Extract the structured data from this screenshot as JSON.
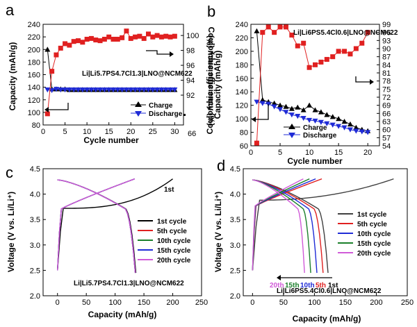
{
  "chart_data": [
    {
      "panel": "a",
      "type": "line",
      "annotation": "Li|Li5.7PS4.7Cl1.3|LNO@NCM622",
      "xlabel": "Cycle number",
      "ylabel": "Capacity (mAh/g)",
      "y2label": "Coulombic efficiency (%)",
      "xlim": [
        0,
        32
      ],
      "xticks": [
        0,
        5,
        10,
        15,
        20,
        25,
        30
      ],
      "ylim": [
        80,
        240
      ],
      "yticks": [
        80,
        100,
        120,
        140,
        160,
        180,
        200,
        220,
        240
      ],
      "y2lim": [
        88,
        101.5
      ],
      "y2ticks": [
        92,
        94,
        96,
        98,
        100
      ],
      "extra_y2_tick_label": "66",
      "series": [
        {
          "name": "Charge",
          "axis": "left",
          "marker": "triangle-up",
          "color": "#000000",
          "x": [
            1,
            2,
            3,
            4,
            5,
            6,
            7,
            8,
            9,
            10,
            11,
            12,
            13,
            14,
            15,
            16,
            17,
            18,
            19,
            20,
            21,
            22,
            23,
            24,
            25,
            26,
            27,
            28,
            29,
            30
          ],
          "values": [
            200,
            137,
            137,
            137,
            137,
            136,
            136,
            136,
            136,
            136,
            136,
            136,
            136,
            136,
            136,
            136,
            136,
            136,
            136,
            136,
            136,
            136,
            136,
            136,
            136,
            136,
            136,
            136,
            136,
            136
          ]
        },
        {
          "name": "Discharge",
          "axis": "left",
          "marker": "triangle-down",
          "color": "#1f2bd6",
          "x": [
            1,
            2,
            3,
            4,
            5,
            6,
            7,
            8,
            9,
            10,
            11,
            12,
            13,
            14,
            15,
            16,
            17,
            18,
            19,
            20,
            21,
            22,
            23,
            24,
            25,
            26,
            27,
            28,
            29,
            30
          ],
          "values": [
            136,
            135,
            137,
            136,
            136,
            136,
            136,
            136,
            136,
            136,
            136,
            136,
            136,
            136,
            136,
            136,
            136,
            136,
            136,
            136,
            136,
            136,
            136,
            136,
            136,
            136,
            136,
            136,
            136,
            136
          ]
        },
        {
          "name": "Coulombic efficiency",
          "axis": "right",
          "marker": "square",
          "color": "#e02020",
          "x": [
            1,
            2,
            3,
            4,
            5,
            6,
            7,
            8,
            9,
            10,
            11,
            12,
            13,
            14,
            15,
            16,
            17,
            18,
            19,
            20,
            21,
            22,
            23,
            24,
            25,
            26,
            27,
            28,
            29,
            30
          ],
          "values": [
            89.5,
            95.2,
            97.4,
            98.3,
            98.9,
            98.7,
            99.2,
            99.3,
            99.1,
            99.5,
            99.6,
            99.4,
            99.3,
            99.5,
            99.8,
            99.5,
            99.5,
            99.7,
            100.6,
            99.6,
            99.8,
            99.9,
            99.6,
            100.2,
            99.8,
            100.0,
            99.8,
            99.9,
            99.8,
            99.9
          ]
        }
      ]
    },
    {
      "panel": "b",
      "type": "line",
      "annotation": "Li|Li6PS5.4Cl0.6|LNO@NCM622",
      "xlabel": "Cycle number",
      "ylabel": "Capacity (mAh/g)",
      "y2label": "Coulombic efficiency (%)",
      "xlim": [
        0,
        22
      ],
      "xticks": [
        0,
        5,
        10,
        15,
        20
      ],
      "ylim": [
        60,
        240
      ],
      "yticks": [
        60,
        80,
        100,
        120,
        140,
        160,
        180,
        200,
        220,
        240
      ],
      "y2lim": [
        54,
        99
      ],
      "y2ticks": [
        54,
        57,
        60,
        63,
        66,
        69,
        72,
        75,
        78,
        81,
        84,
        87,
        90,
        93,
        96,
        99
      ],
      "series": [
        {
          "name": "Charge",
          "axis": "left",
          "marker": "triangle-up",
          "color": "#000000",
          "x": [
            1,
            2,
            3,
            4,
            5,
            6,
            7,
            8,
            9,
            10,
            11,
            12,
            13,
            14,
            15,
            16,
            17,
            18,
            19,
            20
          ],
          "values": [
            230,
            128,
            125,
            123,
            120,
            118,
            115,
            117,
            113,
            120,
            113,
            110,
            106,
            103,
            100,
            96,
            92,
            87,
            84,
            82
          ]
        },
        {
          "name": "Discharge",
          "axis": "left",
          "marker": "triangle-down",
          "color": "#1f2bd6",
          "x": [
            1,
            2,
            3,
            4,
            5,
            6,
            7,
            8,
            9,
            10,
            11,
            12,
            13,
            14,
            15,
            16,
            17,
            18,
            19,
            20
          ],
          "values": [
            125,
            123,
            122,
            118,
            114,
            110,
            106,
            104,
            101,
            98,
            97,
            95,
            93,
            91,
            89,
            87,
            84,
            82,
            81,
            80
          ]
        },
        {
          "name": "Coulombic efficiency",
          "axis": "right",
          "marker": "square",
          "color": "#e02020",
          "x": [
            1,
            2,
            3,
            4,
            5,
            6,
            7,
            8,
            9,
            10,
            11,
            12,
            13,
            14,
            15,
            16,
            17,
            18,
            19,
            20
          ],
          "values": [
            55,
            96,
            98,
            96,
            98,
            98,
            95,
            91,
            92,
            83,
            84,
            85,
            86,
            87,
            89,
            89,
            88,
            90,
            92,
            96
          ]
        }
      ]
    },
    {
      "panel": "c",
      "type": "line",
      "annotation": "Li|Li5.7PS4.7Cl1.3|LNO@NCM622",
      "cycle_marker": "1st",
      "xlabel": "Capacity (mAh/g)",
      "ylabel": "Voltage (V vs. Li/Li⁺)",
      "xlim": [
        -25,
        250
      ],
      "xticks": [
        0,
        50,
        100,
        150,
        200,
        250
      ],
      "ylim": [
        2.0,
        4.5
      ],
      "yticks": [
        2.0,
        2.5,
        3.0,
        3.5,
        4.0,
        4.5
      ],
      "series": [
        {
          "name": "1st cycle",
          "color": "#000000",
          "charge_end": 200,
          "discharge_end": 136,
          "charge_plateau": 3.72
        },
        {
          "name": "5th cycle",
          "color": "#e02020",
          "charge_end": 134,
          "discharge_end": 135,
          "charge_plateau": 3.7
        },
        {
          "name": "10th cycle",
          "color": "#1a7f2a",
          "charge_end": 134,
          "discharge_end": 135,
          "charge_plateau": 3.7
        },
        {
          "name": "15th cycle",
          "color": "#1f2bd6",
          "charge_end": 134,
          "discharge_end": 135,
          "charge_plateau": 3.7
        },
        {
          "name": "20th cycle",
          "color": "#d05ad8",
          "charge_end": 134,
          "discharge_end": 135,
          "charge_plateau": 3.7
        }
      ]
    },
    {
      "panel": "d",
      "type": "line",
      "annotation": "Li|Li6PS5.4Cl0.6|LNO@NCM622",
      "xlabel": "Capacity (mAh/g)",
      "ylabel": "Voltage (V vs. Li/Li⁺)",
      "xlim": [
        -15,
        250
      ],
      "xticks": [
        0,
        50,
        100,
        150,
        200,
        250
      ],
      "ylim": [
        2.0,
        4.5
      ],
      "yticks": [
        2.0,
        2.5,
        3.0,
        3.5,
        4.0,
        4.5
      ],
      "cycle_labels": [
        {
          "text": "20th",
          "color": "#d05ad8"
        },
        {
          "text": "15th",
          "color": "#1a7f2a"
        },
        {
          "text": "10th",
          "color": "#1f2bd6"
        },
        {
          "text": "5th",
          "color": "#e02020"
        },
        {
          "text": "1st",
          "color": "#000000"
        }
      ],
      "series": [
        {
          "name": "1st cycle",
          "color": "#404040",
          "charge_end": 228,
          "discharge_end": 122,
          "charge_plateau": 3.88
        },
        {
          "name": "5th cycle",
          "color": "#e02020",
          "charge_end": 112,
          "discharge_end": 114,
          "charge_plateau": 3.76
        },
        {
          "name": "10th cycle",
          "color": "#1f2bd6",
          "charge_end": 102,
          "discharge_end": 104,
          "charge_plateau": 3.76
        },
        {
          "name": "15th cycle",
          "color": "#1a7f2a",
          "charge_end": 92,
          "discharge_end": 94,
          "charge_plateau": 3.76
        },
        {
          "name": "20th cycle",
          "color": "#d05ad8",
          "charge_end": 82,
          "discharge_end": 84,
          "charge_plateau": 3.76
        }
      ]
    }
  ]
}
